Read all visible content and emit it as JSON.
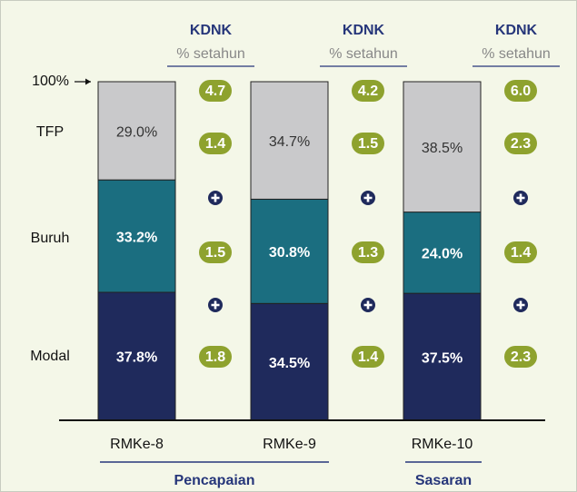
{
  "chart_data": {
    "type": "bar",
    "stacked": true,
    "categories": [
      "RMKe-8",
      "RMKe-9",
      "RMKe-10"
    ],
    "series": [
      {
        "name": "Modal",
        "color": "#1f2a5c",
        "values": [
          37.8,
          34.5,
          37.5
        ],
        "value_labels": [
          "37.8%",
          "34.5%",
          "37.5%"
        ],
        "growth": [
          1.8,
          1.4,
          2.3
        ],
        "growth_labels": [
          "1.8",
          "1.4",
          "2.3"
        ]
      },
      {
        "name": "Buruh",
        "color": "#1b6e80",
        "values": [
          33.2,
          30.8,
          24.0
        ],
        "value_labels": [
          "33.2%",
          "30.8%",
          "24.0%"
        ],
        "growth": [
          1.5,
          1.3,
          1.4
        ],
        "growth_labels": [
          "1.5",
          "1.3",
          "1.4"
        ]
      },
      {
        "name": "TFP",
        "color": "#c9c9cb",
        "values": [
          29.0,
          34.7,
          38.5
        ],
        "value_labels": [
          "29.0%",
          "34.7%",
          "38.5%"
        ],
        "growth": [
          1.4,
          1.5,
          2.3
        ],
        "growth_labels": [
          "1.4",
          "1.5",
          "2.3"
        ]
      }
    ],
    "growth_total": [
      4.7,
      4.2,
      6.0
    ],
    "growth_total_labels": [
      "4.7",
      "4.2",
      "6.0"
    ],
    "growth_header": {
      "title": "KDNK",
      "subtitle": "% setahun"
    },
    "bubble_color": "#8ea22e",
    "groups": [
      {
        "label": "Pencapaian",
        "categories": [
          "RMKe-8",
          "RMKe-9"
        ]
      },
      {
        "label": "Sasaran",
        "categories": [
          "RMKe-10"
        ]
      }
    ],
    "ylim": [
      0,
      100
    ],
    "yticks": [
      {
        "value": 100,
        "label": "100%"
      }
    ]
  }
}
